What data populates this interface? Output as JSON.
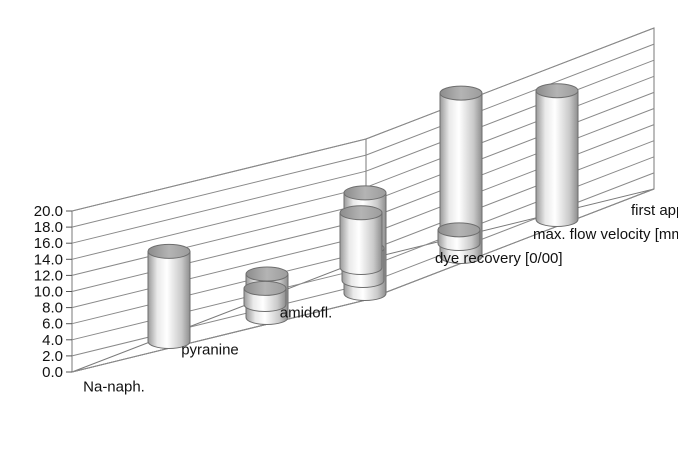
{
  "chart_data": {
    "type": "bar",
    "subtype": "3d-cylinder",
    "title": "",
    "xlabel": "",
    "ylabel": "",
    "ylim": [
      0,
      20
    ],
    "y_ticks": [
      "0.0",
      "2.0",
      "4.0",
      "6.0",
      "8.0",
      "10.0",
      "12.0",
      "14.0",
      "16.0",
      "18.0",
      "20.0"
    ],
    "grid": true,
    "legend": "none",
    "categories": [
      "Na-naph.",
      "pyranine",
      "amidofl."
    ],
    "series": [
      {
        "name": "dye recovery [0/00]",
        "values": [
          11.2,
          2.0,
          6.8
        ]
      },
      {
        "name": "max. flow velocity [mm/s]",
        "values": [
          5.4,
          4.0,
          1.7
        ]
      },
      {
        "name": "first appear. [d]",
        "values": [
          12.5,
          20.3,
          16.0
        ]
      }
    ],
    "colors": {
      "cylinder_light": "#f4f4f4",
      "cylinder_mid": "#d0d0d0",
      "cylinder_dark": "#8c8c8c",
      "grid": "#8a8a8a"
    }
  }
}
